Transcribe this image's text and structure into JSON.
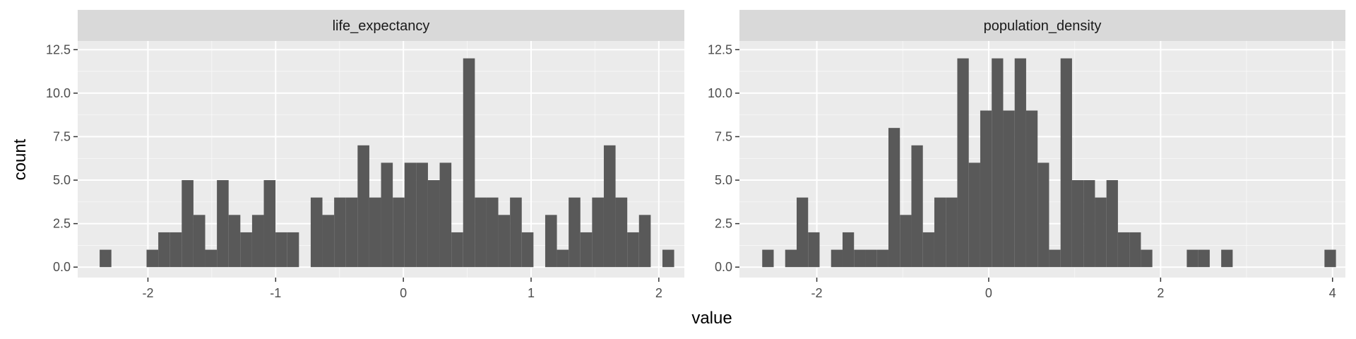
{
  "chart_data": {
    "type": "bar",
    "xlabel": "value",
    "ylabel": "count",
    "shared_y": {
      "ylim": [
        -0.6,
        13.0
      ],
      "yticks": [
        0.0,
        2.5,
        5.0,
        7.5,
        10.0,
        12.5
      ],
      "ytick_labels": [
        "0.0",
        "2.5",
        "5.0",
        "7.5",
        "10.0",
        "12.5"
      ]
    },
    "grid": true,
    "colors": {
      "bar": "#595959",
      "panel": "#ebebeb",
      "grid_major": "#ffffff",
      "strip": "#d9d9d9",
      "tick": "#333333"
    },
    "panels": [
      {
        "strip": "life_expectancy",
        "xlim": [
          -2.55,
          2.2
        ],
        "xticks": [
          -2,
          -1,
          0,
          1,
          2
        ],
        "xtick_labels": [
          "-2",
          "-1",
          "0",
          "1",
          "2"
        ],
        "bin_start": -2.378,
        "binwidth": 0.0918,
        "counts": [
          1,
          0,
          0,
          0,
          1,
          2,
          2,
          5,
          3,
          1,
          5,
          3,
          2,
          3,
          5,
          2,
          2,
          0,
          4,
          3,
          4,
          4,
          7,
          4,
          6,
          4,
          6,
          6,
          5,
          6,
          2,
          12,
          4,
          4,
          3,
          4,
          2,
          0,
          3,
          1,
          4,
          2,
          4,
          7,
          4,
          2,
          3,
          0,
          1
        ]
      },
      {
        "strip": "population_density",
        "xlim": [
          -2.9,
          4.15
        ],
        "xticks": [
          -2,
          0,
          2,
          4
        ],
        "xtick_labels": [
          "-2",
          "0",
          "2",
          "4"
        ],
        "bin_start": -2.635,
        "binwidth": 0.1335,
        "counts": [
          1,
          0,
          1,
          4,
          2,
          0,
          1,
          2,
          1,
          1,
          1,
          8,
          3,
          7,
          2,
          4,
          4,
          12,
          6,
          9,
          12,
          9,
          12,
          9,
          6,
          1,
          12,
          5,
          5,
          4,
          5,
          2,
          2,
          1,
          0,
          0,
          0,
          1,
          1,
          0,
          1,
          0,
          0,
          0,
          0,
          0,
          0,
          0,
          0,
          1
        ]
      }
    ]
  }
}
